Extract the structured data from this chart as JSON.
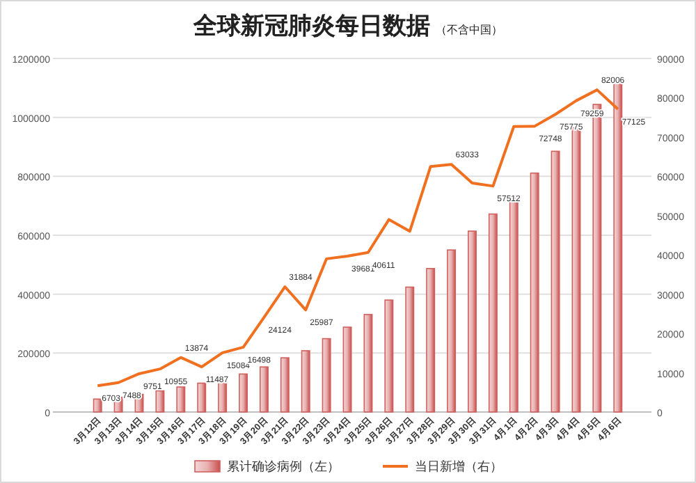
{
  "chart_data": {
    "type": "bar",
    "title": "全球新冠肺炎每日数据",
    "subtitle": "（不含中国）",
    "categories": [
      "3月12日",
      "3月13日",
      "3月14日",
      "3月15日",
      "3月16日",
      "3月17日",
      "3月18日",
      "3月19日",
      "3月20日",
      "3月21日",
      "3月22日",
      "3月23日",
      "3月24日",
      "3月25日",
      "3月26日",
      "3月27日",
      "3月28日",
      "3月29日",
      "3月30日",
      "3月31日",
      "4月1日",
      "4月2日",
      "4月3日",
      "4月4日",
      "4月5日",
      "4月6日"
    ],
    "series": [
      {
        "name": "累计确诊病例（左）",
        "color": "#d0605e",
        "values": [
          44000,
          50000,
          60000,
          72000,
          85000,
          98000,
          109000,
          129000,
          153000,
          184000,
          208000,
          249000,
          288000,
          331000,
          380000,
          424000,
          487000,
          550000,
          614000,
          672000,
          735000,
          811000,
          885000,
          965000,
          1044000,
          1123000
        ]
      },
      {
        "name": "当日新增（右）",
        "type": "line",
        "axis": "y2",
        "color": "#f07020",
        "values": [
          6703,
          7488,
          9751,
          10955,
          13874,
          11487,
          15084,
          16498,
          24124,
          31884,
          25987,
          39000,
          39681,
          40611,
          49000,
          46000,
          62500,
          63033,
          58300,
          57512,
          72700,
          72748,
          75775,
          79259,
          82006,
          77125
        ],
        "value_labels": [
          "6703",
          "7488",
          "9751",
          "10955",
          "13874",
          "11487",
          "15084",
          "16498",
          "24124",
          "31884",
          "25987",
          null,
          "39681",
          "40611",
          null,
          null,
          null,
          "63033",
          null,
          "57512",
          null,
          "72748",
          "75775",
          "79259",
          "82006",
          "77125"
        ]
      }
    ],
    "ylim": [
      0,
      1200000
    ],
    "yticks": [
      0,
      200000,
      400000,
      600000,
      800000,
      1000000,
      1200000
    ],
    "y2lim": [
      0,
      90000
    ],
    "y2ticks": [
      0,
      10000,
      20000,
      30000,
      40000,
      50000,
      60000,
      70000,
      80000,
      90000
    ],
    "grid": "y",
    "legend": "bottom",
    "marker": "none",
    "line_style": "solid"
  }
}
